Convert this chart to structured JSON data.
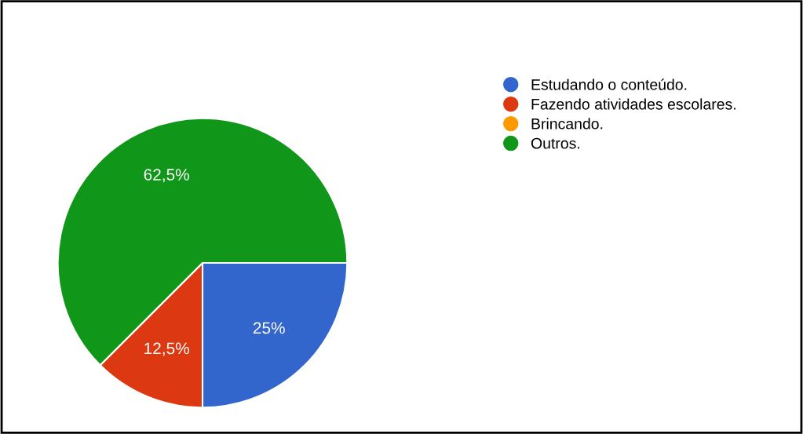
{
  "chart_data": {
    "type": "pie",
    "categories": [
      "Estudando o conteúdo.",
      "Fazendo atividades escolares.",
      "Brincando.",
      "Outros."
    ],
    "values": [
      25,
      12.5,
      0,
      62.5
    ],
    "colors": [
      "#3366cc",
      "#dc3912",
      "#ff9900",
      "#109618"
    ],
    "value_labels": [
      "25%",
      "12,5%",
      null,
      "62,5%"
    ],
    "legend": "right"
  }
}
